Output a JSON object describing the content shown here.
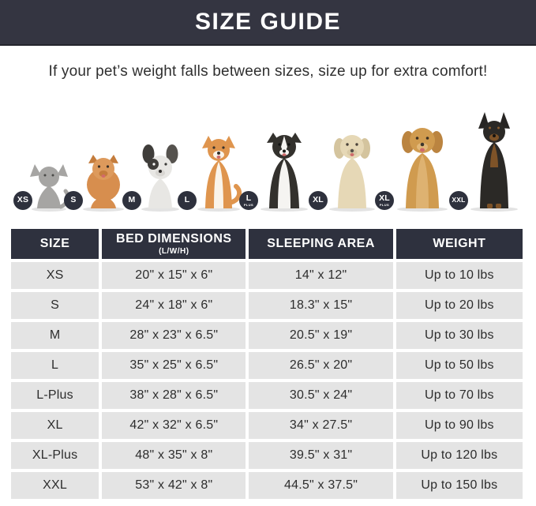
{
  "banner": {
    "title": "SIZE GUIDE"
  },
  "subtitle": "If your pet’s weight falls between sizes, size up for extra comfort!",
  "colors": {
    "banner_bg": "#343541",
    "table_header_bg": "#2e313e",
    "row_bg": "#e4e4e4",
    "badge_bg": "#2e313d",
    "text": "#2d2d2d"
  },
  "animals": [
    {
      "species": "cat",
      "badge": "XS",
      "badge_sub": ""
    },
    {
      "species": "pomeranian",
      "badge": "S",
      "badge_sub": ""
    },
    {
      "species": "french-bulldog",
      "badge": "M",
      "badge_sub": ""
    },
    {
      "species": "shiba-inu",
      "badge": "L",
      "badge_sub": ""
    },
    {
      "species": "border-collie",
      "badge": "L",
      "badge_sub": "PLUS"
    },
    {
      "species": "labrador",
      "badge": "XL",
      "badge_sub": ""
    },
    {
      "species": "golden-retriever",
      "badge": "XL",
      "badge_sub": "PLUS"
    },
    {
      "species": "doberman",
      "badge": "XXL",
      "badge_sub": ""
    }
  ],
  "table": {
    "headers": [
      {
        "label": "SIZE",
        "sub": ""
      },
      {
        "label": "BED DIMENSIONS",
        "sub": "(L/W/H)"
      },
      {
        "label": "SLEEPING AREA",
        "sub": ""
      },
      {
        "label": "WEIGHT",
        "sub": ""
      }
    ],
    "rows": [
      [
        "XS",
        "20\" x 15\" x 6\"",
        "14\" x 12\"",
        "Up to 10 lbs"
      ],
      [
        "S",
        "24\" x 18\" x 6\"",
        "18.3\" x 15\"",
        "Up to 20 lbs"
      ],
      [
        "M",
        "28\" x 23\" x 6.5\"",
        "20.5\" x 19\"",
        "Up to 30 lbs"
      ],
      [
        "L",
        "35\" x 25\" x 6.5\"",
        "26.5\" x 20\"",
        "Up to 50 lbs"
      ],
      [
        "L-Plus",
        "38\" x 28\" x 6.5\"",
        "30.5\" x 24\"",
        "Up to 70 lbs"
      ],
      [
        "XL",
        "42\" x 32\" x 6.5\"",
        "34\" x 27.5\"",
        "Up to 90 lbs"
      ],
      [
        "XL-Plus",
        "48\" x 35\" x 8\"",
        "39.5\" x 31\"",
        "Up to 120 lbs"
      ],
      [
        "XXL",
        "53\" x 42\" x 8\"",
        "44.5\" x 37.5\"",
        "Up to 150 lbs"
      ]
    ]
  }
}
